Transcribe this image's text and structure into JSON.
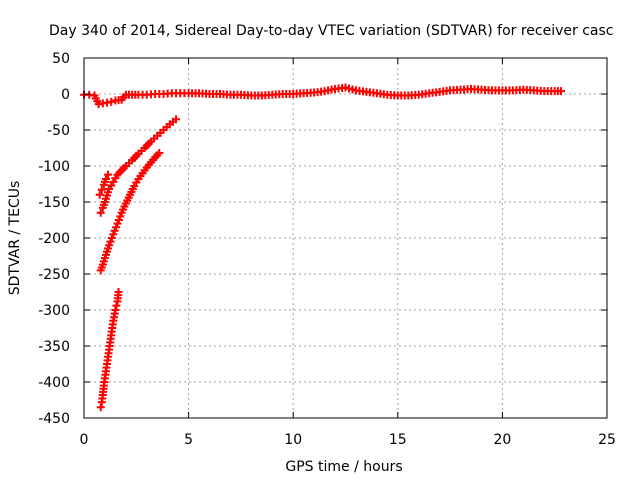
{
  "chart_data": {
    "type": "scatter",
    "title": "Day 340 of 2014, Sidereal Day-to-day VTEC variation (SDTVAR) for receiver casc",
    "xlabel": "GPS time / hours",
    "ylabel": "SDTVAR / TECUs",
    "xlim": [
      0,
      25
    ],
    "ylim": [
      -450,
      50
    ],
    "xticks": [
      0,
      5,
      10,
      15,
      20,
      25
    ],
    "yticks": [
      50,
      0,
      -50,
      -100,
      -150,
      -200,
      -250,
      -300,
      -350,
      -400,
      -450
    ],
    "xtick_labels": [
      "0",
      "5",
      "10",
      "15",
      "20",
      "25"
    ],
    "ytick_labels": [
      "50",
      "0",
      "-50",
      "-100",
      "-150",
      "-200",
      "-250",
      "-300",
      "-350",
      "-400",
      "-450"
    ],
    "grid": true,
    "marker": "plus",
    "color": "#ff0000",
    "series": [
      {
        "x": [
          0.0,
          0.25,
          0.5,
          0.7,
          0.9,
          1.1,
          1.3,
          1.5,
          1.8,
          2.0,
          2.3,
          2.6,
          3.0,
          3.4,
          3.8,
          4.2,
          4.6,
          5.0,
          5.5,
          6.0,
          6.5,
          7.0,
          7.5,
          8.0,
          8.5,
          9.0,
          9.5,
          10.0,
          10.5,
          11.0,
          11.5,
          12.0,
          12.5,
          13.0,
          13.5,
          14.0,
          14.5,
          15.0,
          15.5,
          16.0,
          16.5,
          17.0,
          17.5,
          18.0,
          18.5,
          19.0,
          19.5,
          20.0,
          20.5,
          21.0,
          21.5,
          22.0,
          22.5,
          22.8
        ],
        "y": [
          -1,
          -1,
          -2,
          -14,
          -13,
          -12,
          -11,
          -9,
          -8,
          -1,
          -1,
          -1,
          -1,
          0,
          0,
          1,
          1,
          1,
          1,
          0,
          0,
          -1,
          -1,
          -2,
          -2,
          -1,
          0,
          0,
          1,
          2,
          4,
          7,
          9,
          5,
          3,
          1,
          -1,
          -2,
          -2,
          -1,
          1,
          3,
          5,
          6,
          7,
          6,
          5,
          5,
          5,
          6,
          5,
          4,
          4,
          4
        ]
      },
      {
        "x": [
          0.8,
          0.9,
          1.0,
          1.2,
          1.4,
          1.6,
          1.8,
          2.0,
          2.3,
          2.6,
          2.9,
          3.2,
          3.5,
          3.8,
          4.1,
          4.4
        ],
        "y": [
          -165,
          -158,
          -150,
          -132,
          -122,
          -112,
          -106,
          -100,
          -92,
          -83,
          -75,
          -66,
          -58,
          -50,
          -42,
          -35
        ]
      },
      {
        "x": [
          0.75,
          0.85,
          0.95,
          1.05,
          1.15
        ],
        "y": [
          -140,
          -133,
          -126,
          -118,
          -112
        ]
      },
      {
        "x": [
          0.8,
          0.9,
          1.0,
          1.2,
          1.4,
          1.6,
          1.8,
          2.0,
          2.2,
          2.4,
          2.6,
          2.8,
          3.0,
          3.2,
          3.4,
          3.6
        ],
        "y": [
          -245,
          -237,
          -228,
          -210,
          -195,
          -180,
          -165,
          -152,
          -140,
          -128,
          -118,
          -110,
          -102,
          -95,
          -88,
          -82
        ]
      },
      {
        "x": [
          0.8,
          0.85,
          0.9,
          0.95,
          1.0,
          1.05,
          1.1,
          1.15,
          1.2,
          1.25,
          1.3,
          1.35,
          1.4,
          1.5,
          1.6,
          1.65
        ],
        "y": [
          -435,
          -428,
          -418,
          -405,
          -395,
          -385,
          -375,
          -365,
          -355,
          -345,
          -335,
          -325,
          -315,
          -300,
          -288,
          -275
        ]
      }
    ]
  }
}
